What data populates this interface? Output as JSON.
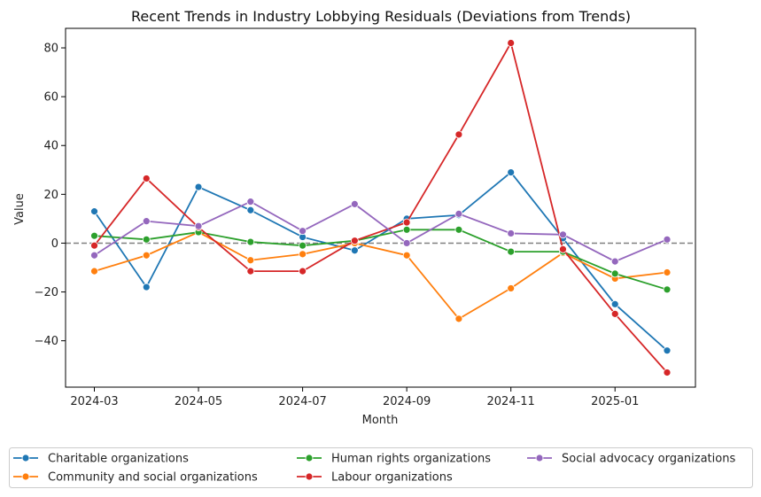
{
  "chart_data": {
    "type": "line",
    "title": "Recent Trends in Industry Lobbying Residuals (Deviations from Trends)",
    "xlabel": "Month",
    "ylabel": "Value",
    "x": [
      "2024-03",
      "2024-04",
      "2024-05",
      "2024-06",
      "2024-07",
      "2024-08",
      "2024-09",
      "2024-10",
      "2024-11",
      "2024-12",
      "2025-01",
      "2025-02"
    ],
    "x_ticks": [
      "2024-03",
      "2024-05",
      "2024-07",
      "2024-09",
      "2024-11",
      "2025-01"
    ],
    "y_ticks": [
      -40,
      -20,
      0,
      20,
      40,
      60,
      80
    ],
    "ylim": [
      -59,
      88
    ],
    "reference_line": {
      "y": 0,
      "style": "dashed",
      "color": "#808080"
    },
    "grid": false,
    "legend_position": "bottom",
    "series": [
      {
        "name": "Charitable organizations",
        "color": "#1f77b4",
        "values": [
          13,
          -18,
          23,
          13.5,
          2.5,
          -3,
          10,
          11.5,
          29,
          2,
          -25,
          -44
        ]
      },
      {
        "name": "Community and social organizations",
        "color": "#ff7f0e",
        "values": [
          -11.5,
          -5,
          4.5,
          -7,
          -4.5,
          0,
          -5,
          -31,
          -18.5,
          -4,
          -14.5,
          -12
        ]
      },
      {
        "name": "Human rights organizations",
        "color": "#2ca02c",
        "values": [
          3,
          1.5,
          4.5,
          0.5,
          -1,
          1,
          5.5,
          5.5,
          -3.5,
          -3.5,
          -12.5,
          -19
        ]
      },
      {
        "name": "Labour organizations",
        "color": "#d62728",
        "values": [
          -1,
          26.5,
          6.5,
          -11.5,
          -11.5,
          1,
          8.5,
          44.5,
          82,
          -2.5,
          -29,
          -53
        ]
      },
      {
        "name": "Social advocacy organizations",
        "color": "#9467bd",
        "values": [
          -5,
          9,
          7,
          17,
          5,
          16,
          0,
          12,
          4,
          3.5,
          -7.5,
          1.5
        ]
      }
    ]
  }
}
